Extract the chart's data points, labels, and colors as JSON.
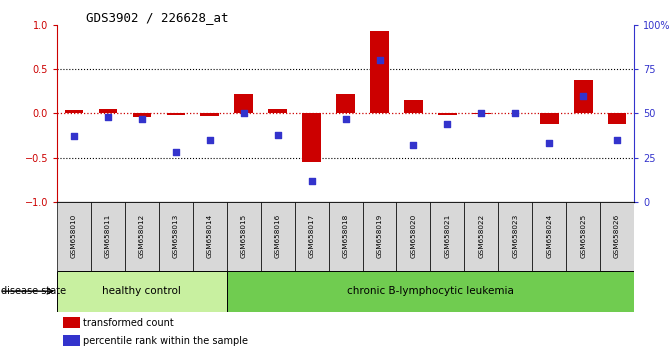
{
  "title": "GDS3902 / 226628_at",
  "samples": [
    "GSM658010",
    "GSM658011",
    "GSM658012",
    "GSM658013",
    "GSM658014",
    "GSM658015",
    "GSM658016",
    "GSM658017",
    "GSM658018",
    "GSM658019",
    "GSM658020",
    "GSM658021",
    "GSM658022",
    "GSM658023",
    "GSM658024",
    "GSM658025",
    "GSM658026"
  ],
  "red_values": [
    0.04,
    0.05,
    -0.04,
    -0.02,
    -0.03,
    0.22,
    0.05,
    -0.55,
    0.22,
    0.93,
    0.15,
    -0.02,
    -0.01,
    0.0,
    -0.12,
    0.38,
    -0.12
  ],
  "blue_values_pct": [
    37,
    48,
    47,
    28,
    35,
    50,
    38,
    12,
    47,
    80,
    32,
    44,
    50,
    50,
    33,
    60,
    35
  ],
  "healthy_count": 5,
  "healthy_label": "healthy control",
  "disease_label": "chronic B-lymphocytic leukemia",
  "disease_state_label": "disease state",
  "legend_red": "transformed count",
  "legend_blue": "percentile rank within the sample",
  "red_color": "#cc0000",
  "blue_color": "#3333cc",
  "ylim": [
    -1,
    1
  ],
  "y2lim": [
    0,
    100
  ],
  "yticks": [
    -1,
    -0.5,
    0,
    0.5,
    1
  ],
  "y2ticks": [
    0,
    25,
    50,
    75,
    100
  ],
  "healthy_bg": "#c8f0a0",
  "disease_bg": "#70cc50",
  "sample_bg": "#d8d8d8"
}
